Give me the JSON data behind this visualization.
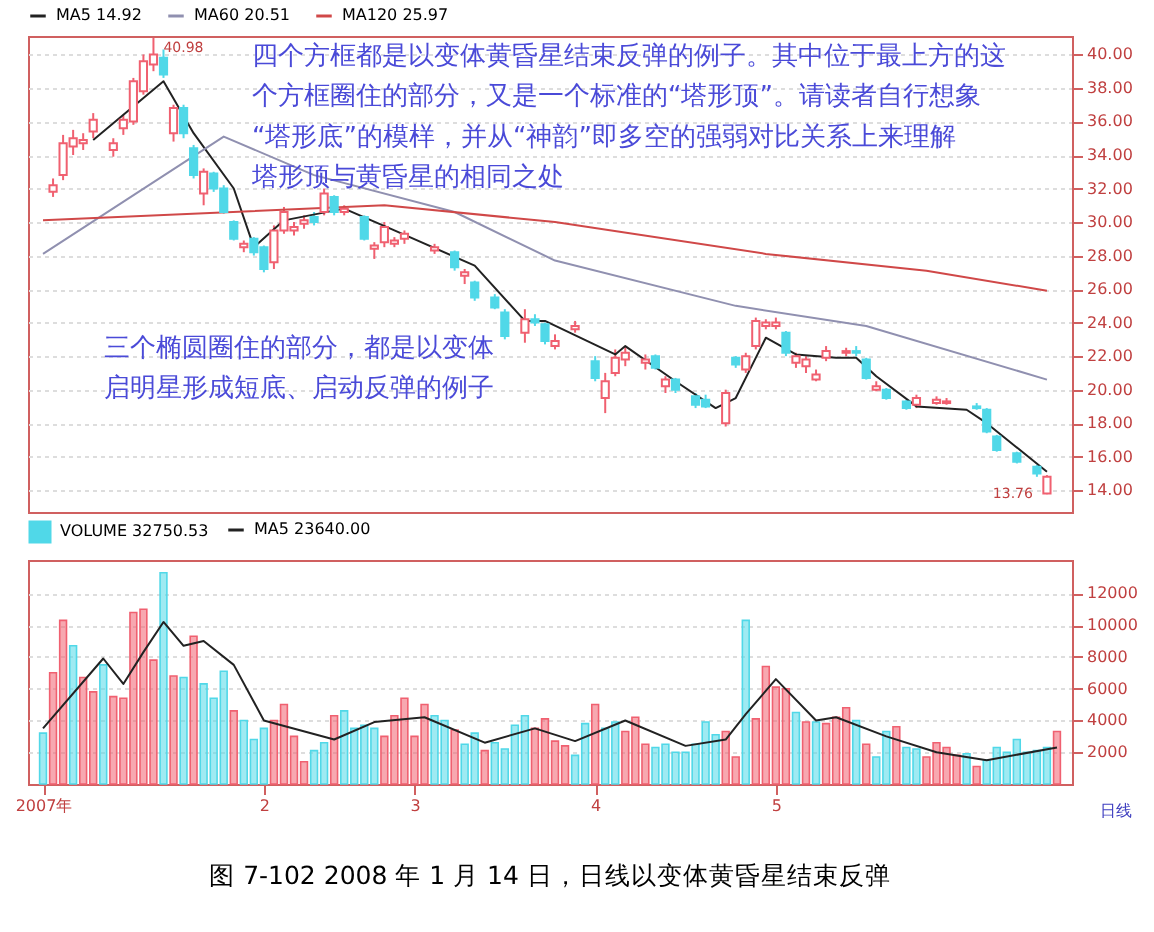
{
  "chart_data": [
    {
      "type": "candlestick",
      "categories": [
        null,
        null,
        null,
        null,
        null,
        null,
        null,
        null,
        null,
        null,
        null,
        null,
        null,
        null,
        null,
        null,
        null,
        null,
        null,
        null,
        null,
        null,
        null,
        null,
        null,
        null,
        null,
        null,
        null,
        null,
        null,
        null,
        null,
        null,
        null,
        null,
        null,
        null,
        null,
        null,
        null,
        null,
        null,
        null,
        null,
        null,
        null,
        null,
        null,
        null,
        null,
        null,
        null,
        null,
        null,
        null,
        null,
        null,
        null,
        null,
        null,
        null,
        null,
        null,
        null,
        null,
        null,
        null,
        null,
        null,
        null,
        null,
        null,
        null,
        null,
        null,
        null,
        null,
        null,
        null,
        null,
        null,
        null,
        null,
        null,
        null,
        null,
        null,
        null,
        null,
        null,
        null,
        null,
        null,
        null,
        null,
        null,
        null,
        null,
        null,
        null,
        null
      ],
      "ohlc": [
        null,
        [
          31.8,
          32.6,
          31.5,
          32.2
        ],
        [
          32.8,
          35.2,
          32.5,
          34.7
        ],
        [
          34.5,
          35.5,
          34.0,
          35.0
        ],
        [
          34.7,
          35.3,
          34.3,
          34.9
        ],
        [
          35.4,
          36.5,
          35.0,
          36.1
        ],
        null,
        [
          34.3,
          35.0,
          33.9,
          34.7
        ],
        [
          35.6,
          36.4,
          35.2,
          36.1
        ],
        [
          36.0,
          38.6,
          35.8,
          38.4
        ],
        [
          37.8,
          40.0,
          37.6,
          39.6
        ],
        [
          39.4,
          40.98,
          39.0,
          40.0
        ],
        [
          39.8,
          40.3,
          38.6,
          38.8
        ],
        [
          35.3,
          37.0,
          34.8,
          36.8
        ],
        [
          36.8,
          37.0,
          35.0,
          35.3
        ],
        [
          34.4,
          34.6,
          32.6,
          32.8
        ],
        [
          31.7,
          33.2,
          31.0,
          33.0
        ],
        [
          32.9,
          33.0,
          31.8,
          32.0
        ],
        [
          32.0,
          32.2,
          30.5,
          30.6
        ],
        [
          30.0,
          30.1,
          28.9,
          29.0
        ],
        [
          28.5,
          28.9,
          28.2,
          28.7
        ],
        [
          29.0,
          29.1,
          28.0,
          28.2
        ],
        [
          28.5,
          28.6,
          27.0,
          27.2
        ],
        [
          27.6,
          29.8,
          27.2,
          29.5
        ],
        [
          29.5,
          30.9,
          29.3,
          30.6
        ],
        [
          29.5,
          30.0,
          29.2,
          29.7
        ],
        [
          29.9,
          30.4,
          29.6,
          30.1
        ],
        [
          30.3,
          30.6,
          29.8,
          30.0
        ],
        [
          30.6,
          32.0,
          30.4,
          31.7
        ],
        [
          31.5,
          31.6,
          30.4,
          30.6
        ],
        [
          30.6,
          31.0,
          30.4,
          30.8
        ],
        null,
        [
          30.3,
          30.4,
          28.9,
          29.0
        ],
        [
          28.4,
          28.8,
          27.8,
          28.6
        ],
        [
          28.8,
          30.0,
          28.5,
          29.7
        ],
        [
          28.7,
          29.1,
          28.5,
          28.9
        ],
        [
          29.0,
          29.5,
          28.7,
          29.3
        ],
        null,
        null,
        [
          28.3,
          28.7,
          28.1,
          28.5
        ],
        null,
        [
          28.2,
          28.3,
          27.1,
          27.3
        ],
        [
          26.8,
          27.2,
          26.3,
          27.0
        ],
        [
          26.4,
          26.5,
          25.3,
          25.5
        ],
        null,
        [
          25.5,
          25.7,
          24.8,
          24.9
        ],
        [
          24.6,
          24.8,
          23.0,
          23.2
        ],
        null,
        [
          23.4,
          24.8,
          22.8,
          24.2
        ],
        [
          24.2,
          24.5,
          23.8,
          24.0
        ],
        [
          23.9,
          24.0,
          22.7,
          22.9
        ],
        [
          22.6,
          23.3,
          22.4,
          22.9
        ],
        null,
        [
          23.6,
          24.1,
          23.4,
          23.8
        ],
        null,
        [
          21.7,
          22.0,
          20.5,
          20.7
        ],
        [
          19.5,
          21.0,
          18.6,
          20.5
        ],
        [
          21.0,
          22.4,
          20.8,
          21.9
        ],
        [
          21.8,
          22.6,
          21.4,
          22.2
        ],
        null,
        [
          21.6,
          22.1,
          21.2,
          21.8
        ],
        [
          22.0,
          22.1,
          21.2,
          21.3
        ],
        [
          20.2,
          20.8,
          19.8,
          20.6
        ],
        [
          20.6,
          20.7,
          19.8,
          20.0
        ],
        null,
        [
          19.6,
          19.8,
          18.9,
          19.1
        ],
        [
          19.4,
          19.7,
          18.9,
          19.0
        ],
        null,
        [
          18.0,
          20.0,
          17.8,
          19.8
        ],
        [
          21.9,
          22.0,
          21.3,
          21.5
        ],
        [
          21.2,
          22.2,
          21.0,
          22.0
        ],
        [
          22.6,
          24.3,
          22.4,
          24.1
        ],
        [
          23.8,
          24.2,
          23.6,
          24.0
        ],
        [
          23.8,
          24.3,
          23.6,
          24.0
        ],
        [
          23.4,
          23.5,
          22.0,
          22.2
        ],
        [
          21.6,
          22.2,
          21.3,
          22.0
        ],
        [
          21.4,
          22.0,
          21.0,
          21.8
        ],
        [
          20.6,
          21.2,
          20.5,
          20.9
        ],
        [
          21.9,
          22.6,
          21.7,
          22.3
        ],
        null,
        [
          22.2,
          22.5,
          22.0,
          22.3
        ],
        [
          22.3,
          22.6,
          22.0,
          22.2
        ],
        [
          21.8,
          21.9,
          20.6,
          20.7
        ],
        [
          20.0,
          20.5,
          19.9,
          20.2
        ],
        [
          20.0,
          20.1,
          19.4,
          19.5
        ],
        null,
        [
          19.3,
          19.4,
          18.8,
          18.9
        ],
        [
          19.1,
          19.7,
          18.9,
          19.5
        ],
        null,
        [
          19.2,
          19.6,
          19.1,
          19.4
        ],
        [
          19.2,
          19.5,
          19.1,
          19.3
        ],
        null,
        null,
        [
          19.0,
          19.2,
          18.8,
          18.9
        ],
        [
          18.8,
          18.9,
          17.4,
          17.5
        ],
        [
          17.2,
          17.3,
          16.3,
          16.4
        ],
        null,
        [
          16.2,
          16.3,
          15.6,
          15.7
        ],
        null,
        [
          15.4,
          15.5,
          14.8,
          15.0
        ],
        [
          13.8,
          14.9,
          13.76,
          14.8
        ],
        null
      ],
      "colors": [
        null,
        "#f06070",
        "#f06070",
        "#f06070",
        "#f06070",
        "#f06070",
        null,
        "#f06070",
        "#f06070",
        "#f06070",
        "#f06070",
        "#f06070",
        "#50d8e8",
        "#f06070",
        "#50d8e8",
        "#50d8e8",
        "#f06070",
        "#50d8e8",
        "#50d8e8",
        "#50d8e8",
        "#f06070",
        "#50d8e8",
        "#50d8e8",
        "#f06070",
        "#f06070",
        "#f06070",
        "#f06070",
        "#50d8e8",
        "#f06070",
        "#50d8e8",
        "#f06070",
        null,
        "#50d8e8",
        "#f06070",
        "#f06070",
        "#f06070",
        "#f06070",
        null,
        null,
        "#f06070",
        null,
        "#50d8e8",
        "#f06070",
        "#50d8e8",
        null,
        "#50d8e8",
        "#50d8e8",
        null,
        "#f06070",
        "#50d8e8",
        "#50d8e8",
        "#f06070",
        null,
        "#f06070",
        null,
        "#50d8e8",
        "#f06070",
        "#f06070",
        "#f06070",
        null,
        "#f06070",
        "#50d8e8",
        "#f06070",
        "#50d8e8",
        null,
        "#50d8e8",
        "#50d8e8",
        null,
        "#f06070",
        "#50d8e8",
        "#f06070",
        "#f06070",
        "#f06070",
        "#f06070",
        "#50d8e8",
        "#f06070",
        "#f06070",
        "#f06070",
        "#f06070",
        null,
        "#f06070",
        "#50d8e8",
        "#50d8e8",
        "#f06070",
        "#50d8e8",
        null,
        "#50d8e8",
        "#f06070",
        null,
        "#f06070",
        "#f06070",
        null,
        null,
        "#50d8e8",
        "#50d8e8",
        "#50d8e8",
        null,
        "#50d8e8",
        null,
        "#50d8e8",
        "#f06070",
        null
      ],
      "series": [
        {
          "name": "MA5 14.92",
          "type": "line",
          "color": "#222222",
          "values": [
            null,
            null,
            null,
            null,
            null,
            34.9,
            null,
            null,
            null,
            null,
            null,
            null,
            38.4,
            null,
            null,
            35.3,
            null,
            null,
            null,
            32.0,
            null,
            28.5,
            null,
            null,
            30.1,
            null,
            null,
            null,
            null,
            null,
            30.8,
            null,
            null,
            null,
            null,
            29.5,
            null,
            null,
            null,
            null,
            null,
            null,
            null,
            27.4,
            null,
            null,
            null,
            null,
            24.1,
            null,
            24.1,
            null,
            null,
            null,
            null,
            null,
            null,
            22.1,
            22.6,
            null,
            null,
            null,
            null,
            20.5,
            null,
            null,
            null,
            18.9,
            null,
            19.5,
            null,
            null,
            23.1,
            null,
            null,
            22.1,
            null,
            null,
            null,
            21.9,
            null,
            21.9,
            null,
            20.8,
            null,
            null,
            null,
            19.0,
            null,
            null,
            null,
            null,
            18.8,
            null,
            18.0,
            null,
            null,
            null,
            null,
            null,
            15.1,
            null
          ]
        },
        {
          "name": "MA60 20.51",
          "type": "line",
          "color": "#9090b0",
          "values": [
            28.1,
            null,
            null,
            null,
            null,
            null,
            null,
            null,
            null,
            null,
            null,
            null,
            null,
            null,
            null,
            null,
            null,
            null,
            35.1,
            null,
            null,
            null,
            null,
            null,
            null,
            null,
            null,
            32.8,
            null,
            null,
            null,
            null,
            null,
            null,
            null,
            null,
            null,
            null,
            null,
            null,
            null,
            30.6,
            null,
            null,
            null,
            null,
            null,
            null,
            null,
            null,
            null,
            27.7,
            null,
            null,
            null,
            null,
            null,
            null,
            null,
            null,
            null,
            null,
            null,
            null,
            null,
            null,
            null,
            null,
            null,
            25.0,
            null,
            null,
            null,
            null,
            null,
            null,
            null,
            null,
            null,
            null,
            null,
            null,
            23.8,
            null,
            null,
            null,
            null,
            null,
            null,
            null,
            null,
            null,
            null,
            null,
            null,
            null,
            null,
            null,
            null,
            null,
            20.6,
            null
          ]
        },
        {
          "name": "MA120 25.97",
          "type": "line",
          "color": "#d04848",
          "values": [
            30.1,
            null,
            null,
            null,
            null,
            null,
            null,
            null,
            null,
            null,
            null,
            null,
            null,
            null,
            null,
            null,
            null,
            null,
            null,
            null,
            null,
            null,
            null,
            null,
            null,
            null,
            null,
            null,
            null,
            null,
            null,
            null,
            null,
            null,
            31.0,
            null,
            null,
            null,
            null,
            null,
            null,
            null,
            null,
            null,
            null,
            null,
            null,
            null,
            null,
            null,
            null,
            30.0,
            null,
            null,
            null,
            null,
            null,
            null,
            null,
            null,
            null,
            null,
            null,
            null,
            null,
            null,
            null,
            null,
            null,
            null,
            null,
            null,
            28.1,
            null,
            null,
            null,
            null,
            null,
            null,
            null,
            null,
            null,
            null,
            null,
            null,
            null,
            null,
            null,
            27.1,
            null,
            null,
            null,
            null,
            null,
            null,
            null,
            null,
            null,
            null,
            null,
            25.9,
            null
          ]
        }
      ],
      "ylim": [
        12.7,
        41.1
      ],
      "yticks": [
        {
          "value": 14,
          "label": "14.00"
        },
        {
          "value": 16,
          "label": "16.00"
        },
        {
          "value": 18,
          "label": "18.00"
        },
        {
          "value": 20,
          "label": "20.00"
        },
        {
          "value": 22,
          "label": "22.00"
        },
        {
          "value": 24,
          "label": "24.00"
        },
        {
          "value": 26,
          "label": "26.00"
        },
        {
          "value": 28,
          "label": "28.00"
        },
        {
          "value": 30,
          "label": "30.00"
        },
        {
          "value": 32,
          "label": "32.00"
        },
        {
          "value": 34,
          "label": "34.00"
        },
        {
          "value": 36,
          "label": "36.00"
        },
        {
          "value": 38,
          "label": "38.00"
        },
        {
          "value": 40,
          "label": "40.00"
        }
      ],
      "tick_labels": "y",
      "grid": "y",
      "legend": "top left",
      "annotations": [
        "四个方框都是以变体黄昏星结束反弹的例子。其中位于最上方的这个方框圈住的部分，又是一个标准的“塔形顶”。请读者自行想象“塔形底”的模样，并从“神韵”即多空的强弱对比关系上来理解塔形顶与黄昏星的相同之处",
        "三个椭圆圈住的部分，都是以变体启明星形成短底、启动反弹的例子",
        "40.98",
        "13.76"
      ]
    },
    {
      "type": "bar",
      "categories": [
        "2007年",
        null,
        null,
        null,
        null,
        null,
        null,
        null,
        null,
        null,
        null,
        null,
        null,
        null,
        null,
        null,
        null,
        null,
        null,
        null,
        null,
        null,
        "2",
        null,
        null,
        null,
        null,
        null,
        null,
        null,
        null,
        null,
        null,
        null,
        null,
        null,
        null,
        "3",
        null,
        null,
        null,
        null,
        null,
        null,
        null,
        null,
        null,
        null,
        null,
        null,
        null,
        null,
        null,
        null,
        null,
        "4",
        null,
        null,
        null,
        null,
        null,
        null,
        null,
        null,
        null,
        null,
        null,
        null,
        null,
        null,
        null,
        null,
        null,
        "5",
        null,
        null,
        null,
        null,
        null,
        null,
        null,
        null,
        null,
        null,
        null,
        null,
        null,
        null,
        null,
        null,
        null,
        null,
        null,
        null,
        null,
        null,
        null,
        null,
        null,
        null,
        null,
        null
      ],
      "series": [
        {
          "name": "VOLUME 32750.53",
          "type": "bar",
          "color": "#50d8e8",
          "values": [
            3200,
            7000,
            10300,
            8700,
            6700,
            5800,
            7500,
            5500,
            5400,
            10800,
            11000,
            7800,
            13300,
            6800,
            6700,
            9300,
            6300,
            5400,
            7100,
            4600,
            4000,
            2800,
            3500,
            4000,
            5000,
            3000,
            1400,
            2100,
            2600,
            4300,
            4600,
            3500,
            3700,
            3500,
            3000,
            4300,
            5400,
            3000,
            5000,
            4300,
            4000,
            3400,
            2500,
            3200,
            2100,
            2600,
            2200,
            3700,
            4300,
            3500,
            4100,
            2700,
            2400,
            1800,
            3800,
            5000,
            3500,
            3900,
            3300,
            4200,
            2500,
            2300,
            2500,
            2000,
            2000,
            2500,
            3900,
            3100,
            3300,
            1700,
            10300,
            4100,
            7400,
            6100,
            6000,
            4500,
            3900,
            3900,
            3800,
            4200,
            4800,
            4000,
            2500,
            1700,
            3300,
            3600,
            2300,
            2200,
            1700,
            2600,
            2300,
            1800,
            1900,
            1100,
            1500,
            2300,
            2000,
            2800,
            2000,
            2100,
            2300,
            3300
          ],
          "colors": [
            "#50d8e8",
            "#f06070",
            "#f06070",
            "#50d8e8",
            "#f06070",
            "#f06070",
            "#50d8e8",
            "#f06070",
            "#f06070",
            "#f06070",
            "#f06070",
            "#f06070",
            "#50d8e8",
            "#f06070",
            "#50d8e8",
            "#f06070",
            "#50d8e8",
            "#50d8e8",
            "#50d8e8",
            "#f06070",
            "#50d8e8",
            "#50d8e8",
            "#50d8e8",
            "#f06070",
            "#f06070",
            "#f06070",
            "#f06070",
            "#50d8e8",
            "#50d8e8",
            "#f06070",
            "#50d8e8",
            "#50d8e8",
            "#50d8e8",
            "#50d8e8",
            "#f06070",
            "#f06070",
            "#f06070",
            "#f06070",
            "#f06070",
            "#50d8e8",
            "#50d8e8",
            "#f06070",
            "#50d8e8",
            "#50d8e8",
            "#f06070",
            "#50d8e8",
            "#50d8e8",
            "#50d8e8",
            "#50d8e8",
            "#f06070",
            "#f06070",
            "#f06070",
            "#f06070",
            "#50d8e8",
            "#50d8e8",
            "#f06070",
            "#50d8e8",
            "#50d8e8",
            "#f06070",
            "#f06070",
            "#f06070",
            "#50d8e8",
            "#50d8e8",
            "#50d8e8",
            "#50d8e8",
            "#50d8e8",
            "#50d8e8",
            "#50d8e8",
            "#f06070",
            "#f06070",
            "#50d8e8",
            "#f06070",
            "#f06070",
            "#f06070",
            "#f06070",
            "#50d8e8",
            "#f06070",
            "#50d8e8",
            "#f06070",
            "#f06070",
            "#f06070",
            "#50d8e8",
            "#f06070",
            "#50d8e8",
            "#50d8e8",
            "#f06070",
            "#50d8e8",
            "#50d8e8",
            "#f06070",
            "#f06070",
            "#f06070",
            "#f06070",
            "#50d8e8",
            "#f06070",
            "#50d8e8",
            "#50d8e8",
            "#50d8e8",
            "#50d8e8",
            "#50d8e8",
            "#50d8e8",
            "#50d8e8",
            "#f06070"
          ]
        },
        {
          "name": "MA5 23640.00",
          "type": "line",
          "color": "#222222",
          "values": [
            3500,
            null,
            null,
            null,
            null,
            null,
            7900,
            null,
            6300,
            null,
            8300,
            null,
            10200,
            null,
            8700,
            null,
            9000,
            null,
            null,
            7500,
            null,
            null,
            4000,
            null,
            null,
            null,
            null,
            null,
            null,
            2800,
            null,
            null,
            null,
            3900,
            null,
            null,
            null,
            null,
            4200,
            null,
            null,
            null,
            null,
            null,
            2600,
            null,
            null,
            null,
            null,
            3500,
            null,
            null,
            null,
            2700,
            null,
            null,
            null,
            null,
            4000,
            null,
            null,
            null,
            null,
            null,
            2400,
            null,
            null,
            null,
            2800,
            null,
            4400,
            null,
            null,
            6600,
            null,
            null,
            null,
            4000,
            null,
            4200,
            null,
            null,
            null,
            null,
            3000,
            null,
            null,
            null,
            null,
            2000,
            null,
            null,
            null,
            null,
            1500,
            null,
            null,
            null,
            null,
            null,
            null,
            2300
          ]
        }
      ],
      "ylim": [
        0,
        14100
      ],
      "yticks": [
        2000,
        4000,
        6000,
        8000,
        10000,
        12000
      ],
      "grid": "y",
      "legend": "top left",
      "annotations": [
        "图 7-102  2008 年 1 月 14 日，日线以变体黄昏星结束反弹",
        "日线"
      ]
    }
  ]
}
